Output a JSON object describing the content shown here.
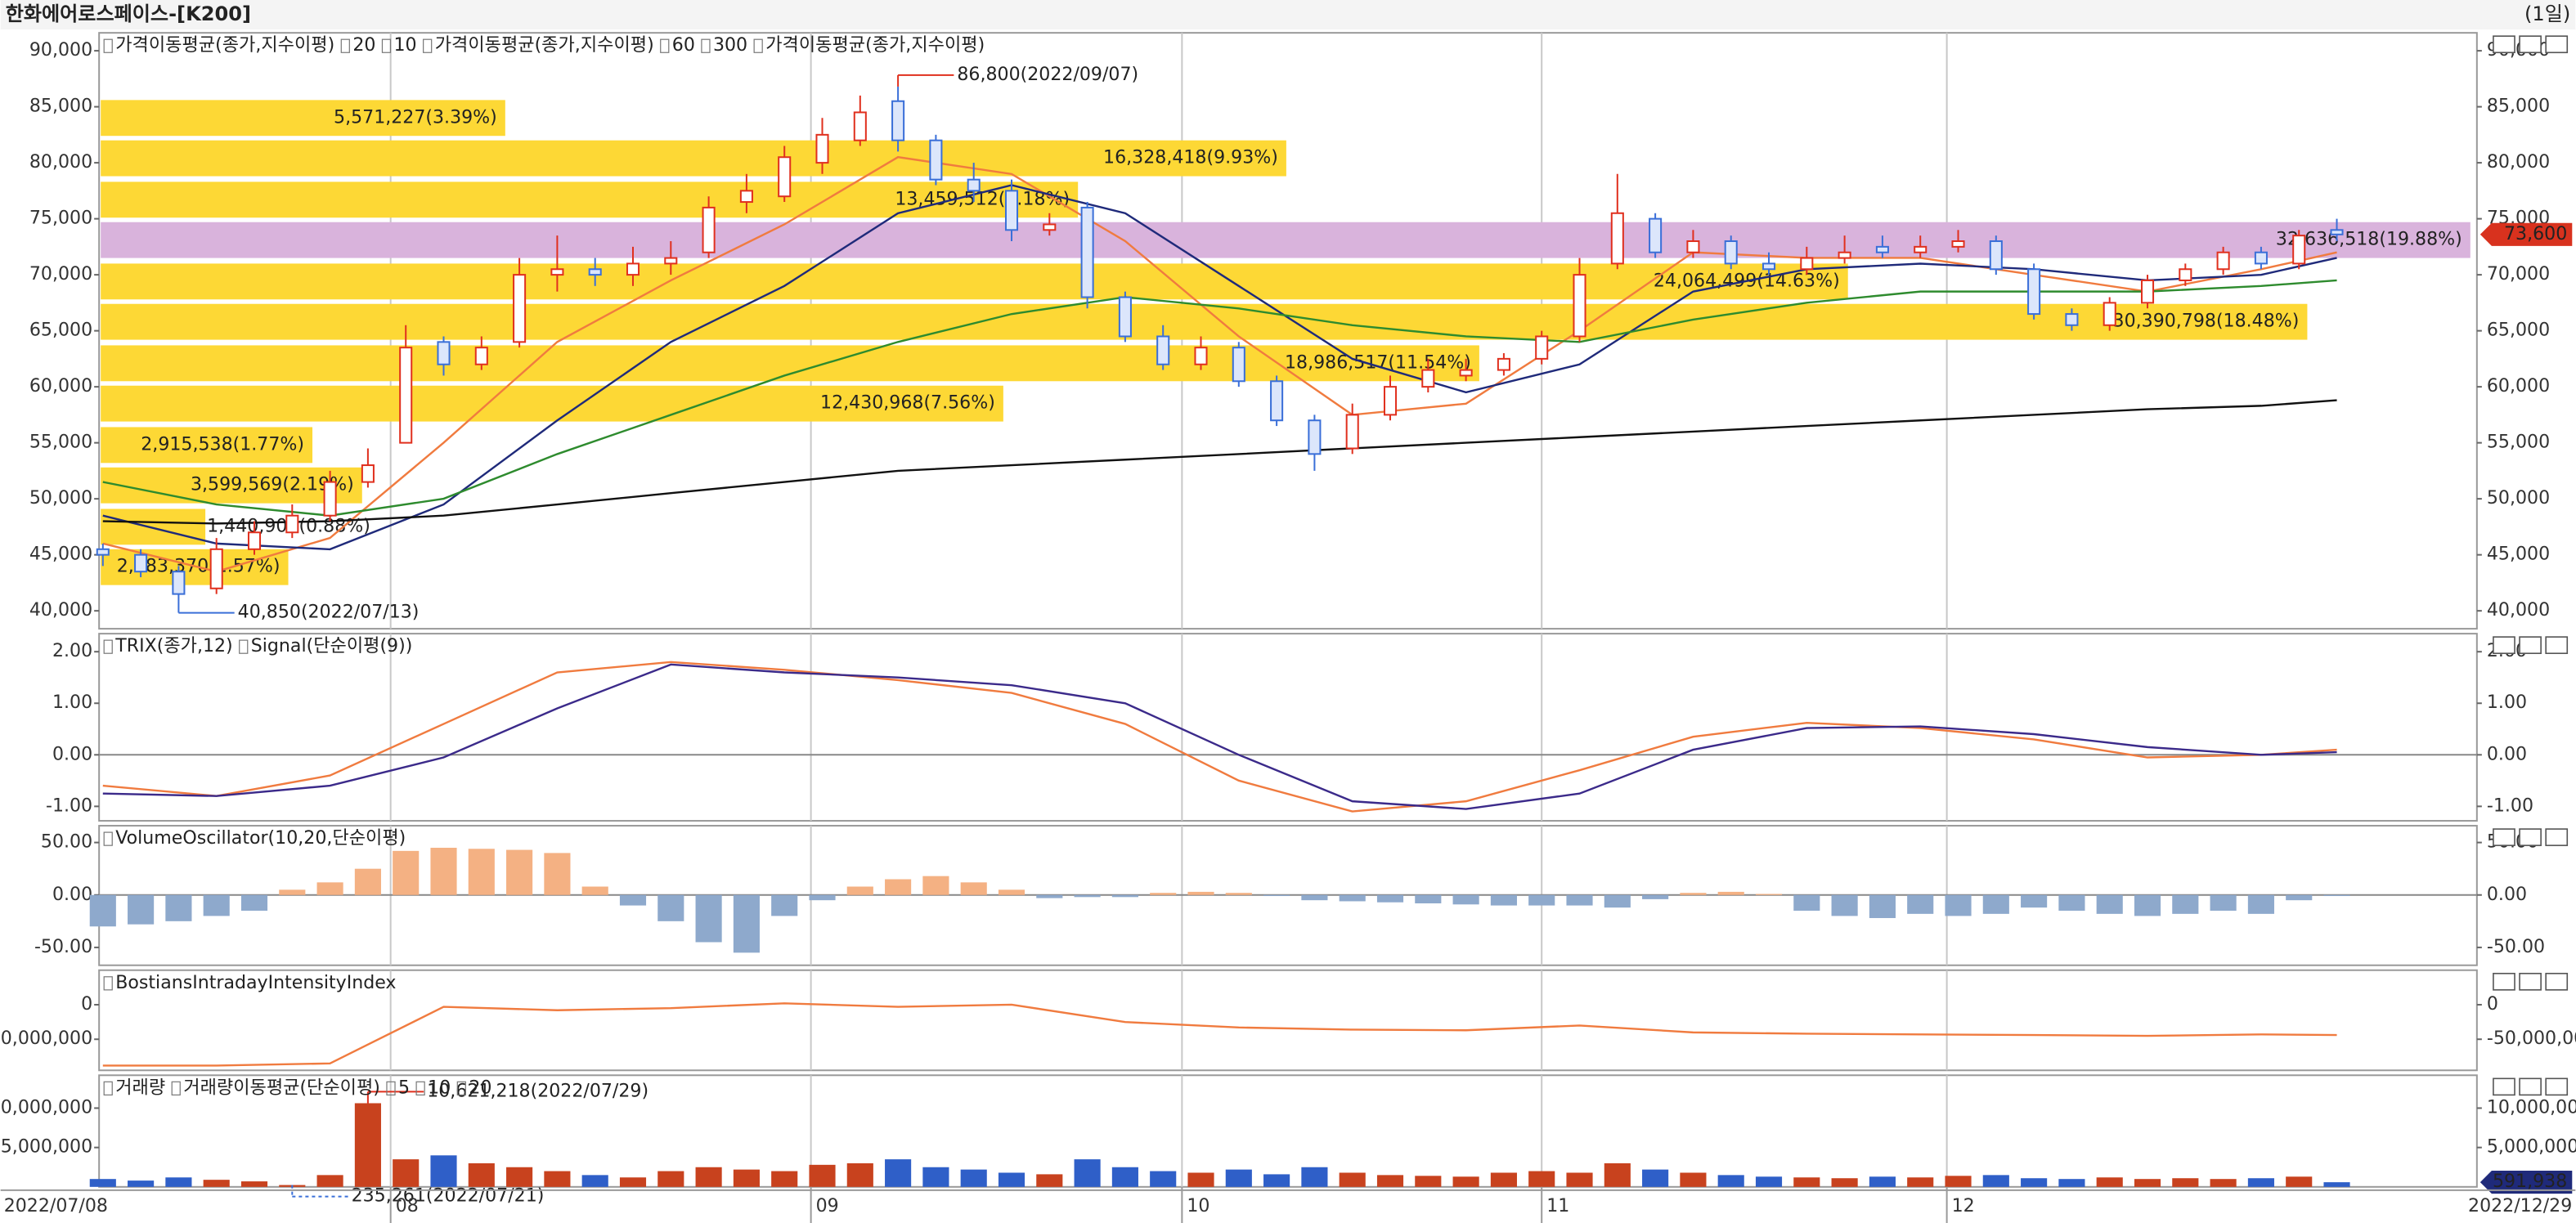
{
  "header": {
    "title": "한화에어로스페이스-[K200]",
    "period": "(1일)"
  },
  "x_axis": {
    "xlim": [
      -0.1,
      62.7
    ],
    "xticks": [
      {
        "value": 7.6,
        "label": "08"
      },
      {
        "value": 18.7,
        "label": "09"
      },
      {
        "value": 28.5,
        "label": "10"
      },
      {
        "value": 38.0,
        "label": "11"
      },
      {
        "value": 48.7,
        "label": "12"
      }
    ],
    "start_label": "2022/07/08",
    "end_label": "2022/12/29"
  },
  "chart_data": [
    {
      "type": "candlestick",
      "legend": [
        {
          "text": "가격이동평균(종가,지수이평)",
          "color": "#222222"
        },
        {
          "text": "20",
          "color": "#1f2a7a"
        },
        {
          "text": "10",
          "color": "#f07b3f"
        },
        {
          "text": "가격이동평균(종가,지수이평)",
          "color": "#222222"
        },
        {
          "text": "60",
          "color": "#2e8b2e"
        },
        {
          "text": "300",
          "color": "#111111"
        },
        {
          "text": "가격이동평균(종가,지수이평)",
          "color": "#222222"
        }
      ],
      "up_color": "#e0301e",
      "down_color": "#3a6fd8",
      "open": [
        45500,
        45000,
        43500,
        42000,
        45500,
        47000,
        48500,
        51500,
        55000,
        64000,
        62000,
        64000,
        70000,
        70500,
        70000,
        71000,
        72000,
        76500,
        77000,
        80000,
        82000,
        85500,
        82000,
        78500,
        77500,
        74000,
        76000,
        68000,
        64500,
        62000,
        63500,
        60500,
        57000,
        54500,
        57500,
        60000,
        61000,
        61500,
        62500,
        64500,
        71000,
        75000,
        72000,
        73000,
        71000,
        70500,
        71500,
        72500,
        72000,
        72500,
        73000,
        70500,
        66500,
        65500,
        67500,
        69500,
        70500,
        72000,
        71000,
        74000
      ],
      "high": [
        46000,
        45500,
        44000,
        46500,
        48000,
        49500,
        52500,
        54500,
        65500,
        64500,
        64500,
        71500,
        73500,
        71500,
        72500,
        73000,
        77000,
        79000,
        81500,
        84000,
        86000,
        86800,
        82500,
        80000,
        78500,
        75500,
        76500,
        68500,
        65500,
        64500,
        64000,
        61000,
        57500,
        58500,
        61000,
        62500,
        62500,
        63000,
        65000,
        71500,
        79000,
        75500,
        74000,
        73500,
        72000,
        72500,
        73500,
        73500,
        73500,
        74000,
        73500,
        71000,
        67000,
        68000,
        70000,
        71000,
        72500,
        72500,
        74000,
        75000
      ],
      "low": [
        44000,
        43000,
        40850,
        41500,
        45000,
        46500,
        48000,
        51000,
        55000,
        61000,
        61500,
        63500,
        68500,
        69000,
        69000,
        70000,
        71500,
        75500,
        76500,
        79000,
        81500,
        81000,
        78000,
        76500,
        73000,
        73500,
        67000,
        64000,
        61500,
        61500,
        60000,
        56500,
        52500,
        54000,
        57000,
        59500,
        60500,
        61000,
        62000,
        64000,
        70500,
        71500,
        71500,
        70500,
        70000,
        70000,
        71000,
        71500,
        71500,
        72000,
        70000,
        66000,
        65000,
        65000,
        67000,
        69000,
        70000,
        70500,
        70500,
        73000
      ],
      "close": [
        45000,
        43500,
        41500,
        45500,
        47000,
        48500,
        51500,
        53000,
        63500,
        62000,
        63500,
        70000,
        70500,
        70000,
        71000,
        71500,
        76000,
        77500,
        80500,
        82500,
        84500,
        82000,
        78500,
        77500,
        74000,
        74500,
        68000,
        64500,
        62000,
        63500,
        60500,
        57000,
        54000,
        57500,
        60000,
        61500,
        61500,
        62500,
        64500,
        70000,
        75500,
        72000,
        73000,
        71000,
        70500,
        71500,
        72000,
        72000,
        72500,
        73000,
        70500,
        66500,
        65500,
        67500,
        69500,
        70500,
        72000,
        71000,
        73500,
        73600
      ],
      "line_x": [
        0,
        3,
        6,
        9,
        12,
        15,
        18,
        21,
        24,
        27,
        30,
        33,
        36,
        39,
        42,
        45,
        48,
        51,
        54,
        57,
        59
      ],
      "series": [
        {
          "color": "#f07b3f",
          "values": [
            46000,
            43500,
            46500,
            55000,
            64000,
            69500,
            74500,
            80500,
            79000,
            73000,
            64500,
            57500,
            58500,
            65000,
            72000,
            71500,
            71500,
            70000,
            68500,
            70500,
            72000
          ]
        },
        {
          "color": "#1f2a7a",
          "values": [
            48500,
            46000,
            45500,
            49500,
            57000,
            64000,
            69000,
            75500,
            78000,
            75500,
            69000,
            62500,
            59500,
            62000,
            68500,
            70500,
            71000,
            70500,
            69500,
            70000,
            71500
          ]
        },
        {
          "color": "#2e8b2e",
          "values": [
            51500,
            49500,
            48500,
            50000,
            54000,
            57500,
            61000,
            64000,
            66500,
            68000,
            67000,
            65500,
            64500,
            64000,
            66000,
            67500,
            68500,
            68500,
            68500,
            69000,
            69500
          ]
        },
        {
          "color": "#111111",
          "values": [
            48000,
            47800,
            48000,
            48500,
            49500,
            50500,
            51500,
            52500,
            53000,
            53500,
            54000,
            54500,
            55000,
            55500,
            56000,
            56500,
            57000,
            57500,
            58000,
            58300,
            58800
          ]
        }
      ],
      "profile": {
        "color": "#fdd835",
        "highlight_color": "#d9b3dc",
        "highlight": 3,
        "lo": [
          82400,
          78800,
          75100,
          71500,
          67800,
          64200,
          60500,
          56900,
          53200,
          49600,
          45900,
          42300
        ],
        "hi": [
          85600,
          82000,
          78300,
          74700,
          71000,
          67400,
          63700,
          60100,
          56400,
          52800,
          49100,
          45500
        ],
        "values": [
          5571227,
          16328418,
          13459512,
          32636518,
          24064499,
          30390798,
          18986517,
          12430968,
          2915538,
          3599569,
          1440903,
          2583370
        ],
        "value_labels": [
          "5,571,227(3.39%)",
          "16,328,418(9.93%)",
          "13,459,512(8.18%)",
          "32,636,518(19.88%)",
          "24,064,499(14.63%)",
          "30,390,798(18.48%)",
          "18,986,517(11.54%)",
          "12,430,968(7.56%)",
          "2,915,538(1.77%)",
          "3,599,569(2.19%)",
          "1,440,903(0.88%)",
          "2,583,370(1.57%)"
        ]
      },
      "annotations": [
        {
          "index": 21,
          "value": 86800,
          "label": "86,800(2022/09/07)",
          "color": "#e0301e",
          "side": "top"
        },
        {
          "index": 2,
          "value": 40850,
          "label": "40,850(2022/07/13)",
          "color": "#3a6fd8",
          "side": "bottom"
        }
      ],
      "last": {
        "value": 73600,
        "label": "73,600",
        "color": "#d8321e"
      },
      "ylim": [
        38400,
        91600
      ],
      "yticks": [
        {
          "value": 40000,
          "label": "40,000"
        },
        {
          "value": 45000,
          "label": "45,000"
        },
        {
          "value": 50000,
          "label": "50,000"
        },
        {
          "value": 55000,
          "label": "55,000"
        },
        {
          "value": 60000,
          "label": "60,000"
        },
        {
          "value": 65000,
          "label": "65,000"
        },
        {
          "value": 70000,
          "label": "70,000"
        },
        {
          "value": 75000,
          "label": "75,000"
        },
        {
          "value": 80000,
          "label": "80,000"
        },
        {
          "value": 85000,
          "label": "85,000"
        },
        {
          "value": 90000,
          "label": "90,000"
        }
      ]
    },
    {
      "type": "line",
      "legend": [
        {
          "text": "TRIX(종가,12)",
          "color": "#f07b3f"
        },
        {
          "text": "Signal(단순이평(9))",
          "color": "#3b2a8a"
        }
      ],
      "zero_line": true,
      "line_x": [
        0,
        3,
        6,
        9,
        12,
        15,
        18,
        21,
        24,
        27,
        30,
        33,
        36,
        39,
        42,
        45,
        48,
        51,
        54,
        57,
        59
      ],
      "series": [
        {
          "color": "#f07b3f",
          "values": [
            -0.6,
            -0.8,
            -0.4,
            0.6,
            1.6,
            1.8,
            1.65,
            1.45,
            1.2,
            0.6,
            -0.5,
            -1.1,
            -0.9,
            -0.3,
            0.35,
            0.62,
            0.52,
            0.3,
            -0.05,
            0.0,
            0.1
          ]
        },
        {
          "color": "#3b2a8a",
          "values": [
            -0.75,
            -0.8,
            -0.6,
            -0.05,
            0.9,
            1.75,
            1.6,
            1.5,
            1.35,
            1.0,
            0.0,
            -0.9,
            -1.05,
            -0.75,
            0.1,
            0.52,
            0.55,
            0.4,
            0.15,
            0.0,
            0.05
          ]
        }
      ],
      "ylim": [
        -1.28,
        2.35
      ],
      "yticks": [
        {
          "value": 2,
          "label": "2.00"
        },
        {
          "value": 1,
          "label": "1.00"
        },
        {
          "value": 0,
          "label": "0.00"
        },
        {
          "value": -1,
          "label": "-1.00"
        }
      ]
    },
    {
      "type": "bar",
      "legend": [
        {
          "text": "VolumeOscillator(10,20,단순이평)",
          "color": "#222222"
        }
      ],
      "zero_line": true,
      "positive_color": "#f4b183",
      "negative_color": "#8ea9cc",
      "values": [
        -30,
        -28,
        -25,
        -20,
        -15,
        5,
        12,
        25,
        42,
        45,
        44,
        43,
        40,
        8,
        -10,
        -25,
        -45,
        -55,
        -20,
        -5,
        8,
        15,
        18,
        12,
        5,
        -3,
        -2,
        -2,
        2,
        3,
        2,
        -1,
        -5,
        -6,
        -7,
        -8,
        -9,
        -10,
        -10,
        -10,
        -12,
        -4,
        2,
        3,
        1,
        -15,
        -20,
        -22,
        -18,
        -20,
        -18,
        -12,
        -15,
        -18,
        -20,
        -18,
        -15,
        -18,
        -5,
        -1
      ],
      "ylim": [
        -67,
        66
      ],
      "yticks": [
        {
          "value": 50,
          "label": "50.00"
        },
        {
          "value": 0,
          "label": "0.00"
        },
        {
          "value": -50,
          "label": "-50.00"
        }
      ]
    },
    {
      "type": "line",
      "legend": [
        {
          "text": "BostiansIntradayIntensityIndex",
          "color": "#f07b3f"
        }
      ],
      "line_x": [
        0,
        3,
        6,
        9,
        12,
        15,
        18,
        21,
        24,
        27,
        30,
        33,
        36,
        39,
        42,
        45,
        48,
        51,
        54,
        57,
        59
      ],
      "series": [
        {
          "color": "#f07b3f",
          "values": [
            -88000000,
            -88000000,
            -85000000,
            -3000000,
            -8000000,
            -5000000,
            2000000,
            -3000000,
            0,
            -25000000,
            -33000000,
            -36000000,
            -37000000,
            -30000000,
            -40000000,
            -42000000,
            -43000000,
            -44000000,
            -45000000,
            -43000000,
            -44000000
          ]
        }
      ],
      "ylim": [
        -95000000,
        50000000
      ],
      "yticks": [
        0,
        {
          "value": -50000000,
          "label": "-50,000,000"
        }
      ]
    },
    {
      "type": "volume",
      "legend": [
        {
          "text": "거래량",
          "color": "#222222"
        },
        {
          "text": "거래량이동평균(단순이평)",
          "color": "#222222"
        },
        {
          "text": "5",
          "color": "#222222"
        },
        {
          "text": "10",
          "color": "#e0301e"
        },
        {
          "text": "20",
          "color": "#2e8b2e"
        }
      ],
      "up_color": "#c8421e",
      "down_color": "#2f5fc8",
      "values": [
        1000000,
        800000,
        1200000,
        900000,
        700000,
        235261,
        1500000,
        10621218,
        3500000,
        4000000,
        3000000,
        2500000,
        2000000,
        1500000,
        1200000,
        2000000,
        2500000,
        2200000,
        2000000,
        2800000,
        3000000,
        3500000,
        2500000,
        2200000,
        1800000,
        1600000,
        3500000,
        2500000,
        2000000,
        1800000,
        2200000,
        1600000,
        2500000,
        1800000,
        1500000,
        1400000,
        1300000,
        1800000,
        2000000,
        1800000,
        3000000,
        2200000,
        1800000,
        1500000,
        1300000,
        1200000,
        1100000,
        1300000,
        1200000,
        1400000,
        1500000,
        1100000,
        1000000,
        1200000,
        1000000,
        1100000,
        1000000,
        1100000,
        1300000,
        591938
      ],
      "annotations": [
        {
          "index": 5,
          "value": 235261,
          "label": "235,261(2022/07/21)",
          "color": "#3a6fd8",
          "side": "bottom"
        },
        {
          "index": 7,
          "value": 10621218,
          "label": "10,621,218(2022/07/29)",
          "color": "#e0301e",
          "side": "top"
        }
      ],
      "last": {
        "value": 591938,
        "label": "591,938",
        "color": "#1f2a7a"
      },
      "ylim": [
        0,
        14170000
      ],
      "yticks": [
        {
          "value": 5000000,
          "label": "5,000,000"
        },
        {
          "value": 10000000,
          "label": "10,000,000"
        }
      ]
    }
  ]
}
